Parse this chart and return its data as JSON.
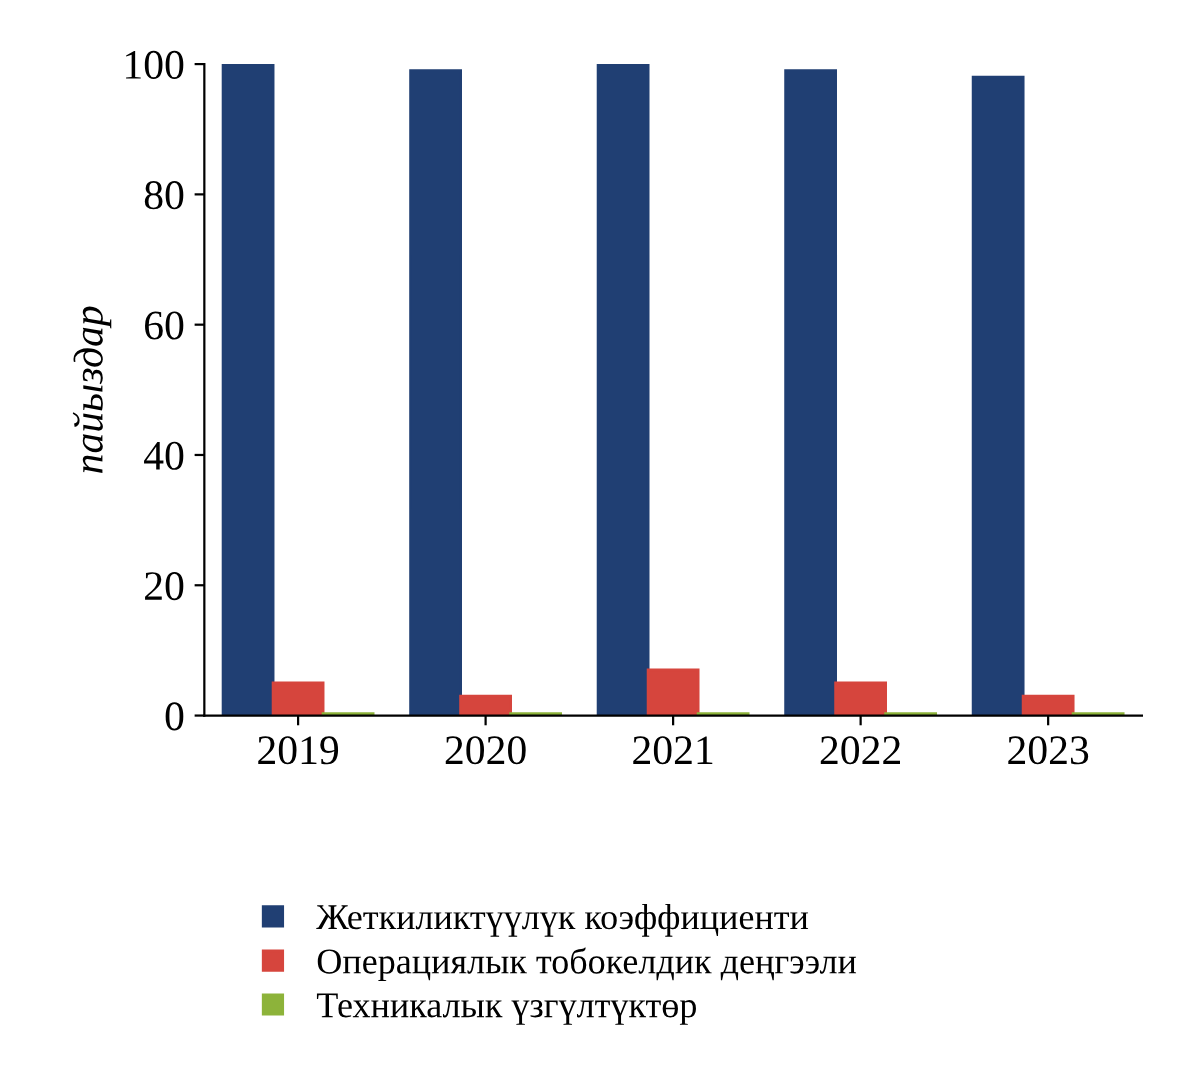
{
  "chart_data": {
    "type": "bar",
    "ylabel": "пайыздар",
    "categories": [
      "2019",
      "2020",
      "2021",
      "2022",
      "2023"
    ],
    "series": [
      {
        "name": "Жеткиликтүүлүк коэффициенти",
        "color": "#203f73",
        "values": [
          100,
          99,
          100,
          99,
          98
        ]
      },
      {
        "name": "Операциялык тобокелдик деңгээли",
        "color": "#d6453d",
        "values": [
          5,
          3,
          7,
          5,
          3
        ]
      },
      {
        "name": "Техникалык үзгүлтүктөр",
        "color": "#8db33a",
        "values": [
          0.3,
          0.3,
          0.3,
          0.3,
          0.3
        ]
      }
    ],
    "ylim": [
      0,
      100
    ],
    "yticks": [
      0,
      20,
      40,
      60,
      80,
      100
    ],
    "grid": false,
    "legend": "bottom"
  }
}
